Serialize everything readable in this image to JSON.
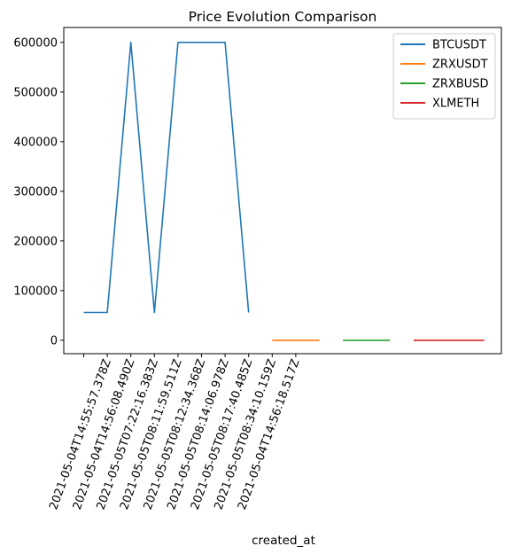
{
  "chart_data": {
    "type": "line",
    "title": "Price Evolution Comparison",
    "xlabel": "created_at",
    "ylabel": "",
    "ylim": [
      -27000,
      630000
    ],
    "yticks": [
      0,
      100000,
      200000,
      300000,
      400000,
      500000,
      600000
    ],
    "x_tick_labels": [
      "",
      "2021-05-04T14:55:57.378Z",
      "2021-05-04T14:56:08.490Z",
      "2021-05-05T07:22:16.383Z",
      "2021-05-05T08:11:59.511Z",
      "2021-05-05T08:12:34.368Z",
      "2021-05-05T08:14:06.978Z",
      "2021-05-05T08:17:40.485Z",
      "2021-05-05T08:34:10.159Z",
      "2021-05-04T14:56:18.517Z"
    ],
    "legend_position": "top-right",
    "grid": false,
    "series": [
      {
        "name": "BTCUSDT",
        "color": "#1f77b4",
        "points": [
          [
            0,
            56000
          ],
          [
            1,
            56000
          ],
          [
            2,
            600000
          ],
          [
            3,
            56000
          ],
          [
            4,
            600000
          ],
          [
            5,
            600000
          ],
          [
            6,
            600000
          ],
          [
            7,
            56000
          ]
        ]
      },
      {
        "name": "ZRXUSDT",
        "color": "#ff7f0e",
        "points": [
          [
            8,
            0
          ],
          [
            10,
            0
          ]
        ]
      },
      {
        "name": "ZRXBUSD",
        "color": "#2ca02c",
        "points": [
          [
            11,
            0
          ],
          [
            13,
            0
          ]
        ]
      },
      {
        "name": "XLMETH",
        "color": "#d62728",
        "points": [
          [
            14,
            0
          ],
          [
            17,
            0
          ]
        ]
      }
    ]
  }
}
